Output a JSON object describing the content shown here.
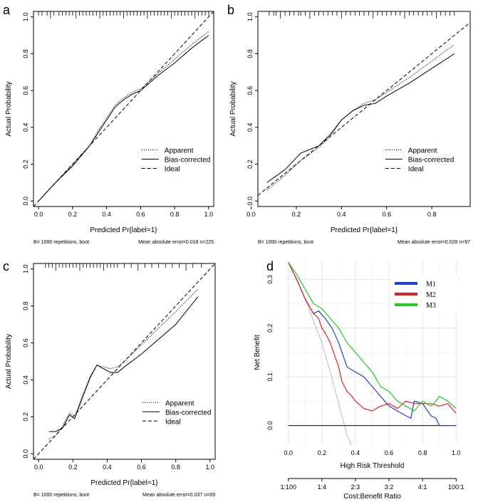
{
  "chart_data": [
    {
      "panel": "a",
      "type": "line",
      "xlabel": "Predicted Pr{label=1}",
      "ylabel": "Actual Probability",
      "xlim": [
        -0.03,
        1.03
      ],
      "ylim": [
        -0.03,
        1.03
      ],
      "xticks": [
        "0.0",
        "0.2",
        "0.4",
        "0.6",
        "0.8",
        "1.0"
      ],
      "yticks": [
        "0.0",
        "0.2",
        "0.4",
        "0.6",
        "0.8",
        "1.0"
      ],
      "legend": [
        "Apparent",
        "Bias-corrected",
        "Ideal"
      ],
      "footer_left": "B= 1000 repetitions, boot",
      "footer_right": "Mean absolute error=0.018 n=225",
      "series": [
        {
          "name": "Apparent",
          "style": "dotted",
          "x": [
            0.0,
            0.1,
            0.2,
            0.3,
            0.35,
            0.4,
            0.45,
            0.5,
            0.55,
            0.6,
            0.7,
            0.8,
            0.9,
            1.0
          ],
          "y": [
            0.0,
            0.1,
            0.2,
            0.3,
            0.38,
            0.45,
            0.52,
            0.56,
            0.59,
            0.61,
            0.69,
            0.77,
            0.85,
            0.92
          ]
        },
        {
          "name": "Bias-corrected",
          "style": "solid",
          "x": [
            0.0,
            0.1,
            0.2,
            0.3,
            0.35,
            0.4,
            0.45,
            0.5,
            0.55,
            0.6,
            0.7,
            0.8,
            0.9,
            1.0
          ],
          "y": [
            0.0,
            0.1,
            0.19,
            0.3,
            0.37,
            0.44,
            0.51,
            0.55,
            0.58,
            0.6,
            0.68,
            0.75,
            0.83,
            0.9
          ]
        },
        {
          "name": "Ideal",
          "style": "dashed",
          "x": [
            -0.03,
            1.03
          ],
          "y": [
            -0.03,
            1.03
          ]
        }
      ],
      "rug": [
        0.0,
        0.02,
        0.05,
        0.07,
        0.09,
        0.12,
        0.14,
        0.16,
        0.18,
        0.2,
        0.22,
        0.24,
        0.26,
        0.28,
        0.3,
        0.32,
        0.34,
        0.36,
        0.38,
        0.4,
        0.42,
        0.44,
        0.46,
        0.48,
        0.5,
        0.52,
        0.54,
        0.56,
        0.58,
        0.6,
        0.62,
        0.64,
        0.66,
        0.68,
        0.7,
        0.72,
        0.74,
        0.76,
        0.78,
        0.8,
        0.82,
        0.84,
        0.86,
        0.88,
        0.9,
        0.92,
        0.94,
        0.96,
        0.98,
        1.0
      ]
    },
    {
      "panel": "b",
      "type": "line",
      "xlabel": "Predicted Pr{label=1}",
      "ylabel": "Actual Probability",
      "xlim": [
        0.03,
        0.97
      ],
      "ylim": [
        -0.03,
        1.03
      ],
      "xticks": [
        "0.0",
        "0.2",
        "0.4",
        "0.6",
        "0.8"
      ],
      "xtick_values": [
        0.0,
        0.2,
        0.4,
        0.6,
        0.8
      ],
      "yticks": [
        "0.0",
        "0.2",
        "0.4",
        "0.6",
        "0.8",
        "1.0"
      ],
      "legend": [
        "Apparent",
        "Bias-corrected",
        "Ideal"
      ],
      "footer_left": "B= 1000 repetitions, boot",
      "footer_right": "Mean absolute error=0.028 n=97",
      "series": [
        {
          "name": "Apparent",
          "style": "dotted",
          "x": [
            0.07,
            0.15,
            0.22,
            0.3,
            0.35,
            0.4,
            0.45,
            0.5,
            0.55,
            0.6,
            0.7,
            0.8,
            0.9
          ],
          "y": [
            0.06,
            0.14,
            0.22,
            0.29,
            0.35,
            0.44,
            0.49,
            0.53,
            0.55,
            0.59,
            0.67,
            0.76,
            0.85
          ]
        },
        {
          "name": "Bias-corrected",
          "style": "solid",
          "x": [
            0.07,
            0.15,
            0.22,
            0.3,
            0.35,
            0.4,
            0.45,
            0.5,
            0.55,
            0.6,
            0.7,
            0.8,
            0.9
          ],
          "y": [
            0.1,
            0.17,
            0.26,
            0.3,
            0.36,
            0.44,
            0.49,
            0.52,
            0.53,
            0.57,
            0.64,
            0.72,
            0.8
          ]
        },
        {
          "name": "Ideal",
          "style": "dashed",
          "x": [
            0.03,
            0.97
          ],
          "y": [
            0.03,
            0.97
          ]
        }
      ],
      "rug": [
        0.08,
        0.1,
        0.11,
        0.13,
        0.15,
        0.17,
        0.19,
        0.21,
        0.22,
        0.24,
        0.26,
        0.28,
        0.3,
        0.32,
        0.34,
        0.36,
        0.38,
        0.4,
        0.42,
        0.44,
        0.46,
        0.48,
        0.5,
        0.52,
        0.54,
        0.56,
        0.58,
        0.6,
        0.62,
        0.64,
        0.66,
        0.68,
        0.7,
        0.72,
        0.74,
        0.76,
        0.78,
        0.8,
        0.82,
        0.84,
        0.86,
        0.88,
        0.9
      ]
    },
    {
      "panel": "c",
      "type": "line",
      "xlabel": "Predicted Pr{label=1}",
      "ylabel": "Actual Probability",
      "xlim": [
        -0.03,
        1.03
      ],
      "ylim": [
        -0.03,
        1.03
      ],
      "xticks": [
        "0.0",
        "0.2",
        "0.4",
        "0.6",
        "0.8",
        "1.0"
      ],
      "yticks": [
        "0.0",
        "0.2",
        "0.4",
        "0.6",
        "0.8",
        "1.0"
      ],
      "legend": [
        "Apparent",
        "Bias-corrected",
        "Ideal"
      ],
      "footer_left": "B= 1000 repetitions, boot",
      "footer_right": "Mean absolute error=0.037 n=69",
      "series": [
        {
          "name": "Apparent",
          "style": "dotted",
          "x": [
            0.06,
            0.1,
            0.14,
            0.18,
            0.21,
            0.25,
            0.3,
            0.34,
            0.38,
            0.42,
            0.46,
            0.5,
            0.6,
            0.7,
            0.8,
            0.93
          ],
          "y": [
            0.08,
            0.1,
            0.15,
            0.22,
            0.2,
            0.3,
            0.42,
            0.48,
            0.47,
            0.46,
            0.47,
            0.5,
            0.59,
            0.68,
            0.77,
            0.89
          ]
        },
        {
          "name": "Bias-corrected",
          "style": "solid",
          "x": [
            0.06,
            0.1,
            0.14,
            0.18,
            0.21,
            0.25,
            0.3,
            0.34,
            0.38,
            0.42,
            0.46,
            0.5,
            0.6,
            0.7,
            0.8,
            0.93
          ],
          "y": [
            0.12,
            0.12,
            0.14,
            0.21,
            0.19,
            0.29,
            0.41,
            0.48,
            0.46,
            0.44,
            0.44,
            0.47,
            0.54,
            0.62,
            0.7,
            0.85
          ]
        },
        {
          "name": "Ideal",
          "style": "dashed",
          "x": [
            -0.03,
            1.03
          ],
          "y": [
            -0.03,
            1.03
          ]
        }
      ],
      "rug": [
        0.04,
        0.06,
        0.08,
        0.1,
        0.12,
        0.14,
        0.16,
        0.18,
        0.2,
        0.22,
        0.24,
        0.26,
        0.28,
        0.3,
        0.32,
        0.34,
        0.36,
        0.38,
        0.4,
        0.42,
        0.44,
        0.46,
        0.5,
        0.54,
        0.58,
        0.62,
        0.66,
        0.7,
        0.74,
        0.78,
        0.82,
        0.86,
        0.9,
        0.95
      ]
    },
    {
      "panel": "d",
      "type": "line",
      "xlabel": "High Risk Threshold",
      "ylabel": "Net Benefit",
      "xlim": [
        -0.02,
        1.02
      ],
      "ylim": [
        -0.04,
        0.34
      ],
      "xticks": [
        "0.0",
        "0.2",
        "0.4",
        "0.6",
        "0.8",
        "1.0"
      ],
      "yticks": [
        "0.0",
        "0.1",
        "0.2",
        "0.3"
      ],
      "cost_benefit_label": "Cost:Benefit Ratio",
      "cost_benefit_ticks": [
        "1:100",
        "1:4",
        "2:3",
        "3:2",
        "4:1",
        "100:1"
      ],
      "legend": [
        "M1",
        "M2",
        "M3"
      ],
      "colors": {
        "M1": "#1f3fd6",
        "M2": "#e02020",
        "M3": "#22cc22",
        "All": "#bbbbbb",
        "None": "#000000"
      },
      "series": [
        {
          "name": "M1",
          "color": "#1f3fd6",
          "x": [
            0.0,
            0.05,
            0.1,
            0.15,
            0.18,
            0.22,
            0.26,
            0.3,
            0.35,
            0.4,
            0.45,
            0.5,
            0.55,
            0.6,
            0.65,
            0.7,
            0.73,
            0.75,
            0.8,
            0.85,
            0.88,
            0.9,
            0.95,
            1.0
          ],
          "y": [
            0.335,
            0.3,
            0.26,
            0.23,
            0.235,
            0.22,
            0.2,
            0.17,
            0.12,
            0.11,
            0.1,
            0.08,
            0.06,
            0.04,
            0.03,
            0.02,
            0.015,
            0.05,
            0.045,
            0.02,
            0.015,
            0.0,
            0.0,
            0.0
          ]
        },
        {
          "name": "M2",
          "color": "#e02020",
          "x": [
            0.0,
            0.05,
            0.1,
            0.15,
            0.18,
            0.2,
            0.22,
            0.25,
            0.28,
            0.3,
            0.32,
            0.35,
            0.38,
            0.4,
            0.45,
            0.5,
            0.55,
            0.6,
            0.65,
            0.7,
            0.75,
            0.8,
            0.85,
            0.9,
            0.95,
            1.0
          ],
          "y": [
            0.335,
            0.3,
            0.26,
            0.23,
            0.22,
            0.2,
            0.19,
            0.17,
            0.14,
            0.12,
            0.09,
            0.07,
            0.06,
            0.05,
            0.035,
            0.03,
            0.04,
            0.045,
            0.035,
            0.05,
            0.045,
            0.045,
            0.045,
            0.04,
            0.045,
            0.025
          ]
        },
        {
          "name": "M3",
          "color": "#22cc22",
          "x": [
            0.0,
            0.05,
            0.1,
            0.15,
            0.2,
            0.25,
            0.3,
            0.35,
            0.4,
            0.45,
            0.5,
            0.55,
            0.6,
            0.65,
            0.7,
            0.75,
            0.8,
            0.85,
            0.88,
            0.9,
            0.95,
            1.0
          ],
          "y": [
            0.335,
            0.31,
            0.28,
            0.25,
            0.24,
            0.22,
            0.2,
            0.17,
            0.15,
            0.13,
            0.11,
            0.08,
            0.07,
            0.05,
            0.04,
            0.03,
            0.05,
            0.04,
            0.05,
            0.06,
            0.05,
            0.035
          ]
        },
        {
          "name": "All",
          "color": "#bbbbbb",
          "x": [
            0.0,
            0.05,
            0.1,
            0.15,
            0.2,
            0.25,
            0.3,
            0.35,
            0.375
          ],
          "y": [
            0.335,
            0.3,
            0.26,
            0.215,
            0.17,
            0.11,
            0.045,
            -0.02,
            -0.04
          ]
        },
        {
          "name": "None",
          "color": "#000000",
          "x": [
            0.0,
            1.0
          ],
          "y": [
            0.0,
            0.0
          ]
        }
      ]
    }
  ]
}
